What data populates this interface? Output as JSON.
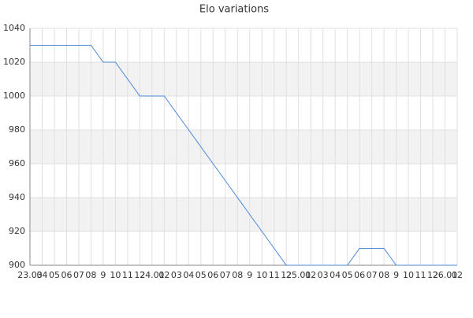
{
  "chart_data": {
    "type": "line",
    "title": "Elo variations",
    "categories": [
      "23.03",
      "04",
      "05",
      "06",
      "07",
      "08",
      "9",
      "10",
      "11",
      "12",
      "24.01",
      "02",
      "03",
      "04",
      "05",
      "06",
      "07",
      "08",
      "9",
      "10",
      "11",
      "12",
      "25.01",
      "02",
      "03",
      "04",
      "05",
      "06",
      "07",
      "08",
      "9",
      "10",
      "11",
      "12",
      "26.01",
      "02"
    ],
    "series": [
      {
        "name": "Elo",
        "color": "#4a86d8",
        "values": [
          1030,
          1030,
          1030,
          1030,
          1030,
          1030,
          1020,
          1020,
          1010,
          1000,
          1000,
          1000,
          990,
          980,
          970,
          960,
          950,
          940,
          930,
          920,
          910,
          900,
          900,
          900,
          900,
          900,
          900,
          910,
          910,
          910,
          900,
          900,
          900,
          900,
          900,
          900
        ]
      }
    ],
    "ylim": [
      900,
      1040
    ],
    "yticks": [
      900,
      920,
      940,
      960,
      980,
      1000,
      1020,
      1040
    ],
    "grid": true
  }
}
